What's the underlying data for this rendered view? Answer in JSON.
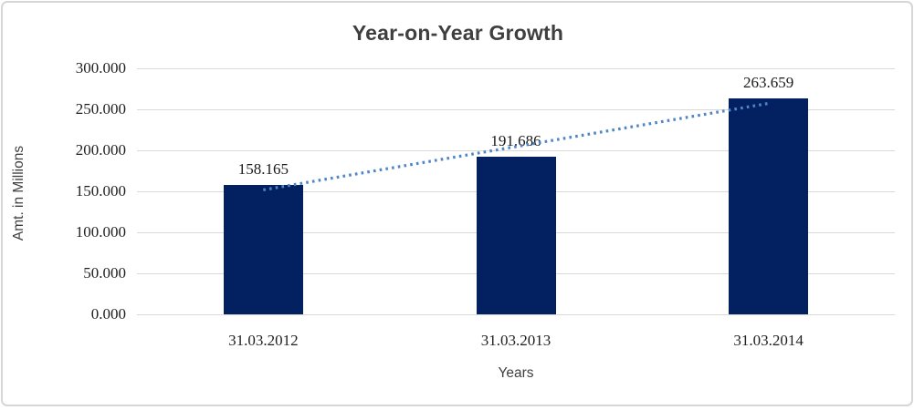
{
  "chart_data": {
    "type": "bar",
    "title": "Year-on-Year Growth",
    "xlabel": "Years",
    "ylabel": "Amt. in Millions",
    "categories": [
      "31.03.2012",
      "31.03.2013",
      "31.03.2014"
    ],
    "values": [
      158.165,
      191.686,
      263.659
    ],
    "data_labels": [
      "158.165",
      "191.686",
      "263.659"
    ],
    "ylim": [
      0,
      300
    ],
    "ytick_values": [
      0,
      50,
      100,
      150,
      200,
      250,
      300
    ],
    "ytick_labels": [
      "0.000",
      "50.000",
      "100.000",
      "150.000",
      "200.000",
      "250.000",
      "300.000"
    ],
    "grid": true,
    "legend_position": "none",
    "annotations": [
      "dotted linear trendline rising across the three bars"
    ],
    "colors": {
      "bar": "#032061",
      "trendline": "#4e86c8",
      "gridline": "#d9d9d9",
      "frame_border": "#d6d6d6",
      "title_text": "#3f3f3f",
      "tick_text": "#1f1f1f",
      "background": "#ffffff"
    }
  }
}
